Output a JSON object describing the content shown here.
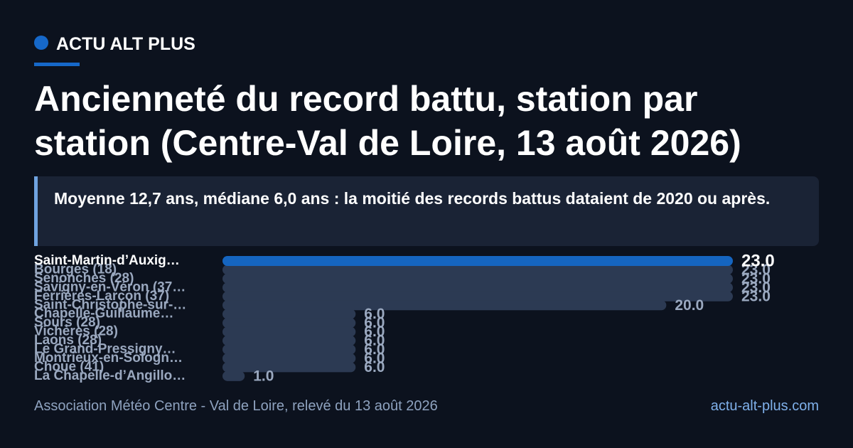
{
  "brand": "ACTU ALT PLUS",
  "chart_data": {
    "type": "bar",
    "title": "Ancienneté du record battu, station par station (Centre-Val de Loire, 13 août 2026)",
    "subtitle": "Moyenne 12,7 ans, médiane 6,0 ans : la moitié des records battus dataient de 2020 ou après.",
    "categories": [
      "Saint-Martin-d’Auxig…",
      "Bourges (18)",
      "Senonches (28)",
      "Savigny-en-Véron (37…",
      "Ferrières-Larçon (37)",
      "Saint-Christophe-sur-…",
      "Chapelle-Guillaume…",
      "Sours (28)",
      "Vichères (28)",
      "Laons (28)",
      "Le Grand-Pressigny…",
      "Montrieux-en-Sologn…",
      "Choue (41)",
      "La Chapelle-d’Angillo…"
    ],
    "values": [
      23,
      23,
      23,
      23,
      23,
      20,
      6,
      6,
      6,
      6,
      6,
      6,
      6,
      1
    ],
    "value_labels": [
      "23.0",
      "23.0",
      "23.0",
      "23.0",
      "23.0",
      "20.0",
      "6.0",
      "6.0",
      "6.0",
      "6.0",
      "6.0",
      "6.0",
      "6.0",
      "1.0"
    ],
    "colors": [
      "#1565c0",
      "#2c3a53",
      "#2c3a53",
      "#2c3a53",
      "#2c3a53",
      "#2c3a53",
      "#2c3a53",
      "#2c3a53",
      "#2c3a53",
      "#2c3a53",
      "#2c3a53",
      "#2c3a53",
      "#2c3a53",
      "#2c3a53"
    ],
    "source": "Association Météo Centre - Val de Loire, relevé du 13 août 2026",
    "url": "actu-alt-plus.com"
  }
}
